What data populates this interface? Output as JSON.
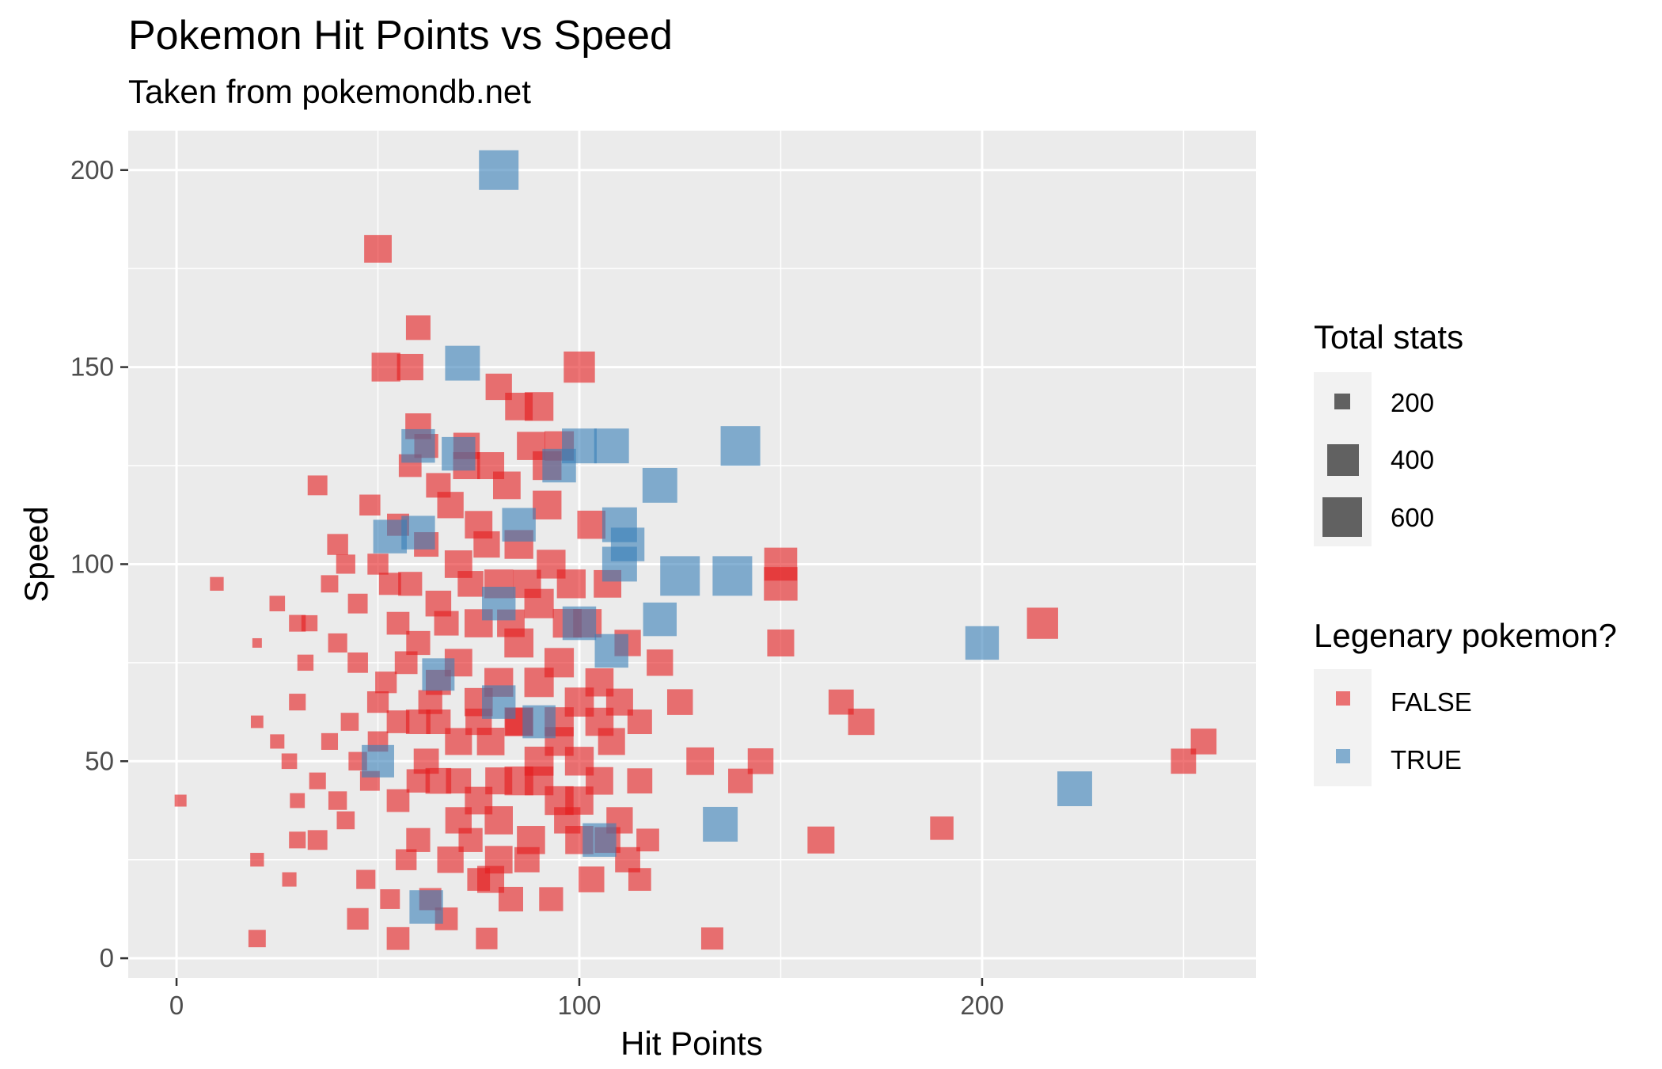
{
  "chart_data": {
    "type": "scatter",
    "title": "Pokemon Hit Points vs Speed",
    "subtitle": "Taken from pokemondb.net",
    "xlabel": "Hit Points",
    "ylabel": "Speed",
    "xlim": [
      -12,
      268
    ],
    "ylim": [
      -5,
      210
    ],
    "x_ticks": [
      0,
      100,
      200
    ],
    "y_ticks": [
      0,
      50,
      100,
      150,
      200
    ],
    "marker": "square",
    "grid": true,
    "legend_position": "right",
    "legends": {
      "size": {
        "title": "Total stats",
        "entries": [
          {
            "label": "200",
            "value": 200
          },
          {
            "label": "400",
            "value": 400
          },
          {
            "label": "600",
            "value": 600
          }
        ]
      },
      "color": {
        "title": "Legenary pokemon?",
        "entries": [
          {
            "label": "FALSE",
            "color": "#e41a1c"
          },
          {
            "label": "TRUE",
            "color": "#377eb8"
          }
        ]
      }
    },
    "series": [
      {
        "name": "FALSE",
        "color": "#e41a1c",
        "points": [
          [
            1,
            40,
            220
          ],
          [
            10,
            95,
            250
          ],
          [
            20,
            5,
            310
          ],
          [
            20,
            25,
            250
          ],
          [
            20,
            60,
            230
          ],
          [
            20,
            80,
            180
          ],
          [
            25,
            90,
            280
          ],
          [
            30,
            30,
            300
          ],
          [
            30,
            85,
            300
          ],
          [
            35,
            120,
            350
          ],
          [
            40,
            105,
            370
          ],
          [
            50,
            180,
            480
          ],
          [
            52,
            150,
            500
          ],
          [
            60,
            160,
            430
          ],
          [
            58,
            150,
            460
          ],
          [
            60,
            135,
            450
          ],
          [
            80,
            145,
            460
          ],
          [
            90,
            140,
            500
          ],
          [
            100,
            150,
            540
          ],
          [
            95,
            130,
            510
          ],
          [
            85,
            140,
            480
          ],
          [
            150,
            95,
            580
          ],
          [
            150,
            100,
            570
          ],
          [
            150,
            80,
            470
          ],
          [
            165,
            65,
            440
          ],
          [
            170,
            60,
            460
          ],
          [
            145,
            50,
            450
          ],
          [
            140,
            45,
            430
          ],
          [
            130,
            50,
            480
          ],
          [
            125,
            65,
            450
          ],
          [
            160,
            30,
            470
          ],
          [
            190,
            33,
            410
          ],
          [
            133,
            5,
            390
          ],
          [
            115,
            20,
            400
          ],
          [
            117,
            30,
            400
          ],
          [
            120,
            75,
            460
          ],
          [
            215,
            85,
            540
          ],
          [
            250,
            50,
            440
          ],
          [
            255,
            55,
            450
          ],
          [
            55,
            5,
            400
          ],
          [
            80,
            25,
            480
          ],
          [
            75,
            20,
            400
          ],
          [
            45,
            10,
            380
          ],
          [
            35,
            30,
            350
          ],
          [
            40,
            40,
            330
          ],
          [
            30,
            65,
            300
          ],
          [
            32,
            75,
            290
          ],
          [
            38,
            55,
            300
          ],
          [
            42,
            35,
            320
          ],
          [
            45,
            50,
            330
          ],
          [
            48,
            45,
            350
          ],
          [
            50,
            55,
            360
          ],
          [
            52,
            70,
            380
          ],
          [
            55,
            40,
            400
          ],
          [
            55,
            85,
            400
          ],
          [
            58,
            95,
            420
          ],
          [
            60,
            30,
            420
          ],
          [
            60,
            60,
            430
          ],
          [
            60,
            80,
            420
          ],
          [
            62,
            50,
            440
          ],
          [
            62,
            105,
            430
          ],
          [
            65,
            45,
            450
          ],
          [
            65,
            70,
            440
          ],
          [
            65,
            90,
            450
          ],
          [
            68,
            25,
            460
          ],
          [
            68,
            115,
            460
          ],
          [
            70,
            35,
            460
          ],
          [
            70,
            55,
            470
          ],
          [
            70,
            75,
            480
          ],
          [
            70,
            100,
            480
          ],
          [
            72,
            125,
            470
          ],
          [
            75,
            40,
            480
          ],
          [
            75,
            65,
            490
          ],
          [
            75,
            85,
            490
          ],
          [
            75,
            110,
            480
          ],
          [
            78,
            20,
            470
          ],
          [
            78,
            55,
            480
          ],
          [
            80,
            35,
            490
          ],
          [
            80,
            70,
            500
          ],
          [
            80,
            95,
            500
          ],
          [
            82,
            120,
            480
          ],
          [
            85,
            45,
            500
          ],
          [
            85,
            60,
            500
          ],
          [
            85,
            80,
            505
          ],
          [
            85,
            105,
            500
          ],
          [
            88,
            30,
            490
          ],
          [
            90,
            50,
            505
          ],
          [
            90,
            70,
            510
          ],
          [
            90,
            90,
            510
          ],
          [
            92,
            115,
            500
          ],
          [
            95,
            40,
            500
          ],
          [
            95,
            60,
            505
          ],
          [
            95,
            75,
            510
          ],
          [
            98,
            95,
            500
          ],
          [
            100,
            30,
            490
          ],
          [
            100,
            50,
            500
          ],
          [
            100,
            65,
            505
          ],
          [
            102,
            85,
            495
          ],
          [
            105,
            45,
            480
          ],
          [
            105,
            70,
            490
          ],
          [
            108,
            55,
            470
          ],
          [
            110,
            35,
            460
          ],
          [
            110,
            65,
            470
          ],
          [
            112,
            80,
            460
          ],
          [
            115,
            45,
            440
          ],
          [
            115,
            60,
            430
          ],
          [
            50,
            65,
            380
          ],
          [
            45,
            75,
            360
          ],
          [
            40,
            80,
            340
          ],
          [
            45,
            90,
            350
          ],
          [
            50,
            100,
            370
          ],
          [
            55,
            110,
            390
          ],
          [
            58,
            125,
            400
          ],
          [
            62,
            130,
            420
          ],
          [
            65,
            120,
            430
          ],
          [
            72,
            130,
            460
          ],
          [
            78,
            125,
            470
          ],
          [
            88,
            130,
            490
          ],
          [
            92,
            125,
            500
          ],
          [
            35,
            45,
            300
          ],
          [
            28,
            50,
            280
          ],
          [
            33,
            85,
            290
          ],
          [
            38,
            95,
            310
          ],
          [
            43,
            60,
            320
          ],
          [
            47,
            20,
            340
          ],
          [
            53,
            15,
            350
          ],
          [
            57,
            25,
            370
          ],
          [
            63,
            15,
            390
          ],
          [
            67,
            10,
            400
          ],
          [
            73,
            30,
            420
          ],
          [
            77,
            5,
            380
          ],
          [
            83,
            15,
            430
          ],
          [
            87,
            25,
            440
          ],
          [
            93,
            15,
            420
          ],
          [
            97,
            35,
            460
          ],
          [
            103,
            20,
            450
          ],
          [
            107,
            30,
            450
          ],
          [
            112,
            25,
            440
          ],
          [
            30,
            40,
            270
          ],
          [
            28,
            20,
            260
          ],
          [
            25,
            55,
            260
          ],
          [
            42,
            100,
            340
          ],
          [
            48,
            115,
            370
          ],
          [
            53,
            95,
            390
          ],
          [
            57,
            75,
            400
          ],
          [
            63,
            65,
            420
          ],
          [
            67,
            85,
            430
          ],
          [
            73,
            95,
            450
          ],
          [
            77,
            105,
            460
          ],
          [
            83,
            85,
            480
          ],
          [
            87,
            95,
            490
          ],
          [
            93,
            100,
            500
          ],
          [
            97,
            85,
            500
          ],
          [
            103,
            110,
            490
          ],
          [
            107,
            95,
            480
          ],
          [
            60,
            45,
            410
          ],
          [
            70,
            45,
            440
          ],
          [
            80,
            45,
            470
          ],
          [
            90,
            45,
            500
          ],
          [
            100,
            40,
            490
          ],
          [
            55,
            60,
            400
          ],
          [
            65,
            60,
            430
          ],
          [
            75,
            60,
            460
          ],
          [
            85,
            60,
            480
          ],
          [
            95,
            55,
            500
          ],
          [
            105,
            60,
            490
          ]
        ]
      },
      {
        "name": "TRUE",
        "color": "#377eb8",
        "points": [
          [
            80,
            200,
            680
          ],
          [
            71,
            151,
            600
          ],
          [
            60,
            130,
            580
          ],
          [
            100,
            130,
            600
          ],
          [
            108,
            130,
            600
          ],
          [
            120,
            120,
            600
          ],
          [
            140,
            130,
            680
          ],
          [
            110,
            110,
            600
          ],
          [
            110,
            100,
            600
          ],
          [
            125,
            97,
            680
          ],
          [
            138,
            97,
            680
          ],
          [
            200,
            80,
            580
          ],
          [
            223,
            43,
            600
          ],
          [
            135,
            34,
            600
          ],
          [
            105,
            30,
            580
          ],
          [
            62,
            13,
            580
          ],
          [
            53,
            107,
            580
          ],
          [
            60,
            108,
            580
          ],
          [
            120,
            86,
            580
          ],
          [
            108,
            78,
            580
          ],
          [
            80,
            65,
            580
          ],
          [
            50,
            50,
            560
          ],
          [
            65,
            72,
            560
          ],
          [
            90,
            60,
            570
          ],
          [
            100,
            85,
            580
          ],
          [
            70,
            128,
            580
          ],
          [
            95,
            125,
            580
          ],
          [
            80,
            90,
            580
          ],
          [
            112,
            105,
            580
          ],
          [
            85,
            110,
            580
          ]
        ]
      }
    ]
  }
}
